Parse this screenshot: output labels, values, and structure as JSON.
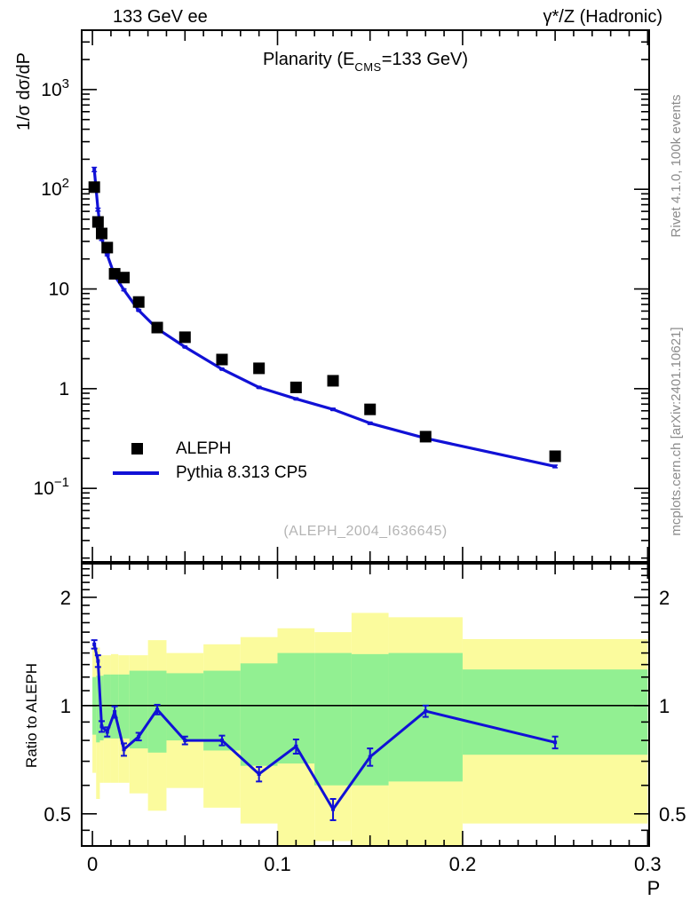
{
  "header": {
    "left": "133 GeV ee",
    "right": "γ*/Z (Hadronic)"
  },
  "title": {
    "pre": "Planarity (E",
    "sub": "CMS",
    "post": "=133 GeV)"
  },
  "labels": {
    "ylabel_main": "1/σ  dσ/dP",
    "ylabel_ratio": "Ratio to ALEPH",
    "xlabel": "P",
    "watermark": "(ALEPH_2004_I636645)"
  },
  "side": {
    "top": "Rivet 4.1.0,  100k events",
    "bottom": "mcplots.cern.ch [arXiv:2401.10621]"
  },
  "legend": {
    "items": [
      {
        "label": "ALEPH",
        "marker": "black-square"
      },
      {
        "label": "Pythia 8.313 CP5",
        "marker": "blue-line"
      }
    ]
  },
  "chart_data": {
    "type": "line",
    "title": "Planarity (E_CMS=133 GeV)",
    "xlabel": "P",
    "ylabel": "1/σ dσ/dP",
    "ratio_label": "Ratio to ALEPH",
    "x_range": [
      -0.0058,
      0.3008
    ],
    "x_major_ticks": [
      0,
      0.1,
      0.2,
      0.3
    ],
    "x_tick_labels": [
      "0",
      "0.1",
      "0.2",
      "0.3"
    ],
    "main_y_log_range": [
      0.0183,
      3940
    ],
    "main_yticks": [
      {
        "v": 0.1,
        "base": "10",
        "exp": "−1"
      },
      {
        "v": 1,
        "base": "1",
        "exp": ""
      },
      {
        "v": 10,
        "base": "10",
        "exp": ""
      },
      {
        "v": 100,
        "base": "10",
        "exp": "2"
      },
      {
        "v": 1000,
        "base": "10",
        "exp": "3"
      }
    ],
    "ratio_y_log_range": [
      0.407,
      2.48
    ],
    "ratio_major_ticks": [
      0.5,
      1,
      2
    ],
    "ratio_tick_labels": [
      "0.5",
      "1",
      "2"
    ],
    "ratio_minor_ticks": [
      0.45,
      0.6,
      0.7,
      0.8,
      0.9,
      1.1,
      1.2,
      1.3,
      1.4,
      1.5,
      1.6,
      1.7,
      1.8,
      1.9,
      2.1,
      2.2,
      2.3,
      2.4
    ],
    "bin_edges": [
      0,
      0.002,
      0.004,
      0.006,
      0.01,
      0.014,
      0.02,
      0.03,
      0.04,
      0.06,
      0.08,
      0.1,
      0.12,
      0.14,
      0.16,
      0.2,
      0.3
    ],
    "series": [
      {
        "name": "ALEPH",
        "type": "markers",
        "color": "#000000",
        "values": [
          105,
          47,
          36,
          26,
          14.2,
          13.0,
          7.4,
          4.1,
          3.28,
          1.96,
          1.6,
          1.03,
          1.2,
          0.62,
          0.33,
          0.21
        ]
      },
      {
        "name": "Pythia 8.313 CP5",
        "type": "line",
        "color": "#1111d6",
        "values": [
          158,
          62.5,
          31.5,
          22,
          13.6,
          9.8,
          6.1,
          4.0,
          2.62,
          1.57,
          1.03,
          0.79,
          0.62,
          0.45,
          0.318,
          0.166
        ],
        "rel_errors": [
          0.05,
          0.035,
          0.025,
          0.02,
          0.02,
          0.02,
          0.015,
          0.015,
          0.015,
          0.015,
          0.02,
          0.02,
          0.025,
          0.025,
          0.02,
          0.03
        ]
      }
    ],
    "ratio": {
      "values": [
        1.48,
        1.33,
        0.875,
        0.845,
        0.96,
        0.755,
        0.82,
        0.975,
        0.8,
        0.8,
        0.645,
        0.77,
        0.515,
        0.72,
        0.965,
        0.79
      ],
      "errors": [
        0.04,
        0.05,
        0.03,
        0.025,
        0.035,
        0.03,
        0.02,
        0.03,
        0.02,
        0.025,
        0.03,
        0.035,
        0.035,
        0.04,
        0.035,
        0.03
      ],
      "reference_line": 1
    },
    "bands": {
      "yellow": {
        "color": "#fbfb9d",
        "hi": [
          1.48,
          1.45,
          1.38,
          1.38,
          1.39,
          1.38,
          1.38,
          1.52,
          1.4,
          1.48,
          1.55,
          1.64,
          1.6,
          1.81,
          1.76,
          1.53
        ],
        "lo": [
          0.65,
          0.55,
          0.61,
          0.61,
          0.61,
          0.61,
          0.57,
          0.51,
          0.59,
          0.52,
          0.47,
          0.36,
          0.42,
          0.36,
          0.36,
          0.47
        ]
      },
      "green": {
        "color": "#92f092",
        "hi": [
          1.2,
          1.21,
          1.21,
          1.22,
          1.22,
          1.22,
          1.25,
          1.25,
          1.23,
          1.25,
          1.31,
          1.4,
          1.4,
          1.39,
          1.4,
          1.26
        ],
        "lo": [
          0.83,
          0.79,
          0.8,
          0.81,
          0.81,
          0.81,
          0.76,
          0.74,
          0.8,
          0.75,
          0.68,
          0.69,
          0.6,
          0.6,
          0.615,
          0.73
        ]
      }
    }
  }
}
